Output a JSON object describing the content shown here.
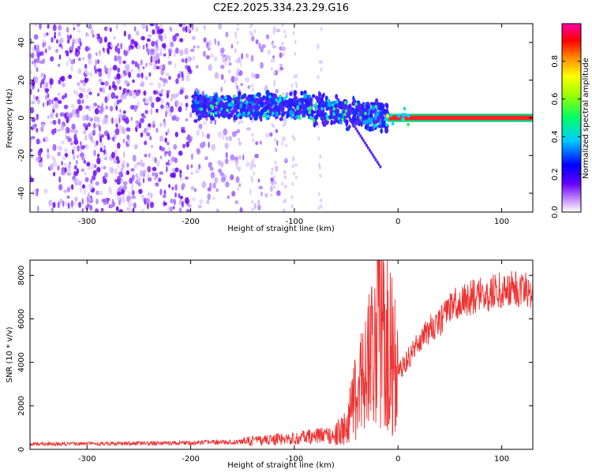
{
  "title": "C2E2.2025.334.23.29.G16",
  "colors": {
    "snr_line": "#ee3333",
    "axis": "#000000",
    "background": "#ffffff"
  },
  "chart_data": [
    {
      "type": "heatmap",
      "name": "spectrogram",
      "xlabel": "Height of straight line (km)",
      "ylabel": "Frequency (Hz)",
      "xlim": [
        -355,
        130
      ],
      "ylim": [
        -50,
        50
      ],
      "xticks": [
        -300,
        -200,
        -100,
        0,
        100
      ],
      "yticks": [
        -40,
        -20,
        0,
        20,
        40
      ],
      "colorbar": {
        "label": "Normalized spectral amplitude",
        "range": [
          0,
          1
        ],
        "ticks": [
          0,
          0.2,
          0.4,
          0.6,
          0.8
        ],
        "colormap": "rainbow (white-purple-blue-cyan-green-yellow-red-magenta)"
      },
      "features": [
        {
          "x_range": [
            -355,
            -200
          ],
          "description": "broadband purple noise across all frequencies"
        },
        {
          "x_range": [
            -200,
            -10
          ],
          "description": "concentrated blue band near 0 to 10 Hz, drifting downward with height"
        },
        {
          "x_range": [
            -10,
            130
          ],
          "description": "narrow red carrier line at 0 Hz"
        }
      ]
    },
    {
      "type": "line",
      "name": "snr",
      "xlabel": "Height of straight line (km)",
      "ylabel": "SNR (10 * v/v)",
      "xlim": [
        -355,
        130
      ],
      "ylim": [
        0,
        8700
      ],
      "xticks": [
        -300,
        -200,
        -100,
        0,
        100
      ],
      "yticks": [
        0,
        2000,
        4000,
        6000,
        8000
      ],
      "series": [
        {
          "name": "SNR",
          "x": [
            -355,
            -300,
            -250,
            -200,
            -150,
            -120,
            -100,
            -80,
            -60,
            -50,
            -40,
            -30,
            -20,
            -15,
            -10,
            0,
            10,
            20,
            30,
            40,
            50,
            60,
            80,
            100,
            120,
            130
          ],
          "y": [
            250,
            250,
            270,
            300,
            350,
            450,
            500,
            600,
            700,
            1000,
            2500,
            4000,
            5500,
            6500,
            5000,
            3500,
            4200,
            5000,
            5500,
            5800,
            6500,
            6800,
            7100,
            7300,
            7400,
            7300
          ]
        }
      ]
    }
  ]
}
